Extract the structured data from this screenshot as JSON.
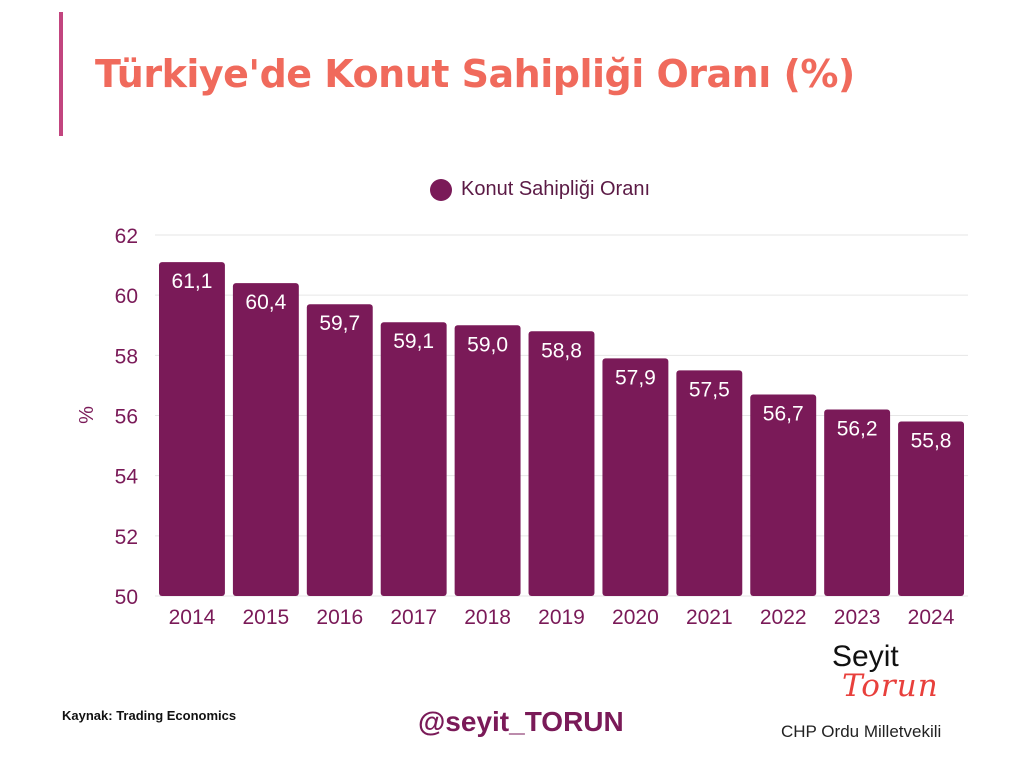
{
  "title": "Türkiye'de Konut  Sahipliği Oranı (%)",
  "colors": {
    "accent_bar": "#c2457f",
    "title": "#f06a5c",
    "bar": "#7a1a58",
    "tick_text": "#7a1a58",
    "handle": "#7a1a58",
    "signature_script": "#e8403c"
  },
  "chart_data": {
    "type": "bar",
    "categories": [
      "2014",
      "2015",
      "2016",
      "2017",
      "2018",
      "2019",
      "2020",
      "2021",
      "2022",
      "2023",
      "2024"
    ],
    "series": [
      {
        "name": "Konut Sahipliği Oranı",
        "values": [
          61.1,
          60.4,
          59.7,
          59.1,
          59.0,
          58.8,
          57.9,
          57.5,
          56.7,
          56.2,
          55.8
        ],
        "labels": [
          "61,1",
          "60,4",
          "59,7",
          "59,1",
          "59,0",
          "58,8",
          "57,9",
          "57,5",
          "56,7",
          "56,2",
          "55,8"
        ]
      }
    ],
    "ylabel": "%",
    "ylim": [
      50,
      62
    ],
    "yticks": [
      50,
      52,
      54,
      56,
      58,
      60,
      62
    ],
    "grid": true,
    "legend_position": "top-center"
  },
  "footer": {
    "source": "Kaynak: Trading Economics",
    "handle": "@seyit_TORUN"
  },
  "signature": {
    "name": "Seyit",
    "script": "Torun",
    "role": "CHP Ordu Milletvekili"
  }
}
